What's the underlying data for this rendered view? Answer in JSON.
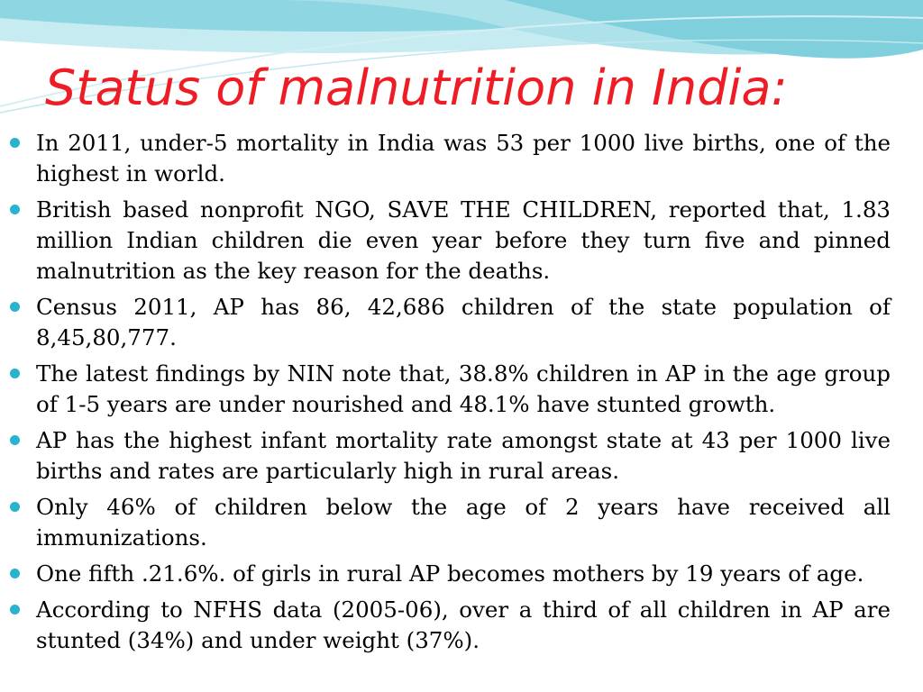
{
  "slide": {
    "title": "Status of malnutrition in India:",
    "colors": {
      "title": "#ee1c25",
      "bullet_icon": "#2ab3cf",
      "text": "#000000",
      "header_teal": "#9bdbe6",
      "header_light": "#d9f2f6"
    },
    "bullet_icon": "filled-circle-icon",
    "bullets": [
      "In 2011, under-5 mortality in India was 53 per 1000 live births, one of the highest in world.",
      "British based nonprofit NGO, SAVE THE CHILDREN, reported that, 1.83 million Indian children die even year before they turn five and pinned malnutrition as the key reason for the deaths.",
      "Census 2011, AP has 86, 42,686 children of the state population of 8,45,80,777.",
      "The latest findings by NIN note that, 38.8% children in AP in the age group of 1-5 years are under nourished and 48.1% have stunted growth.",
      "AP has the highest infant mortality rate amongst state at 43 per 1000 live births and rates are particularly high in rural areas.",
      "Only 46% of children below the age of 2 years have received all immunizations.",
      "One fifth .21.6%. of girls in rural AP becomes mothers by 19 years of age.",
      "According to NFHS data (2005-06), over a third of all children in AP are stunted (34%) and under weight (37%)."
    ]
  }
}
